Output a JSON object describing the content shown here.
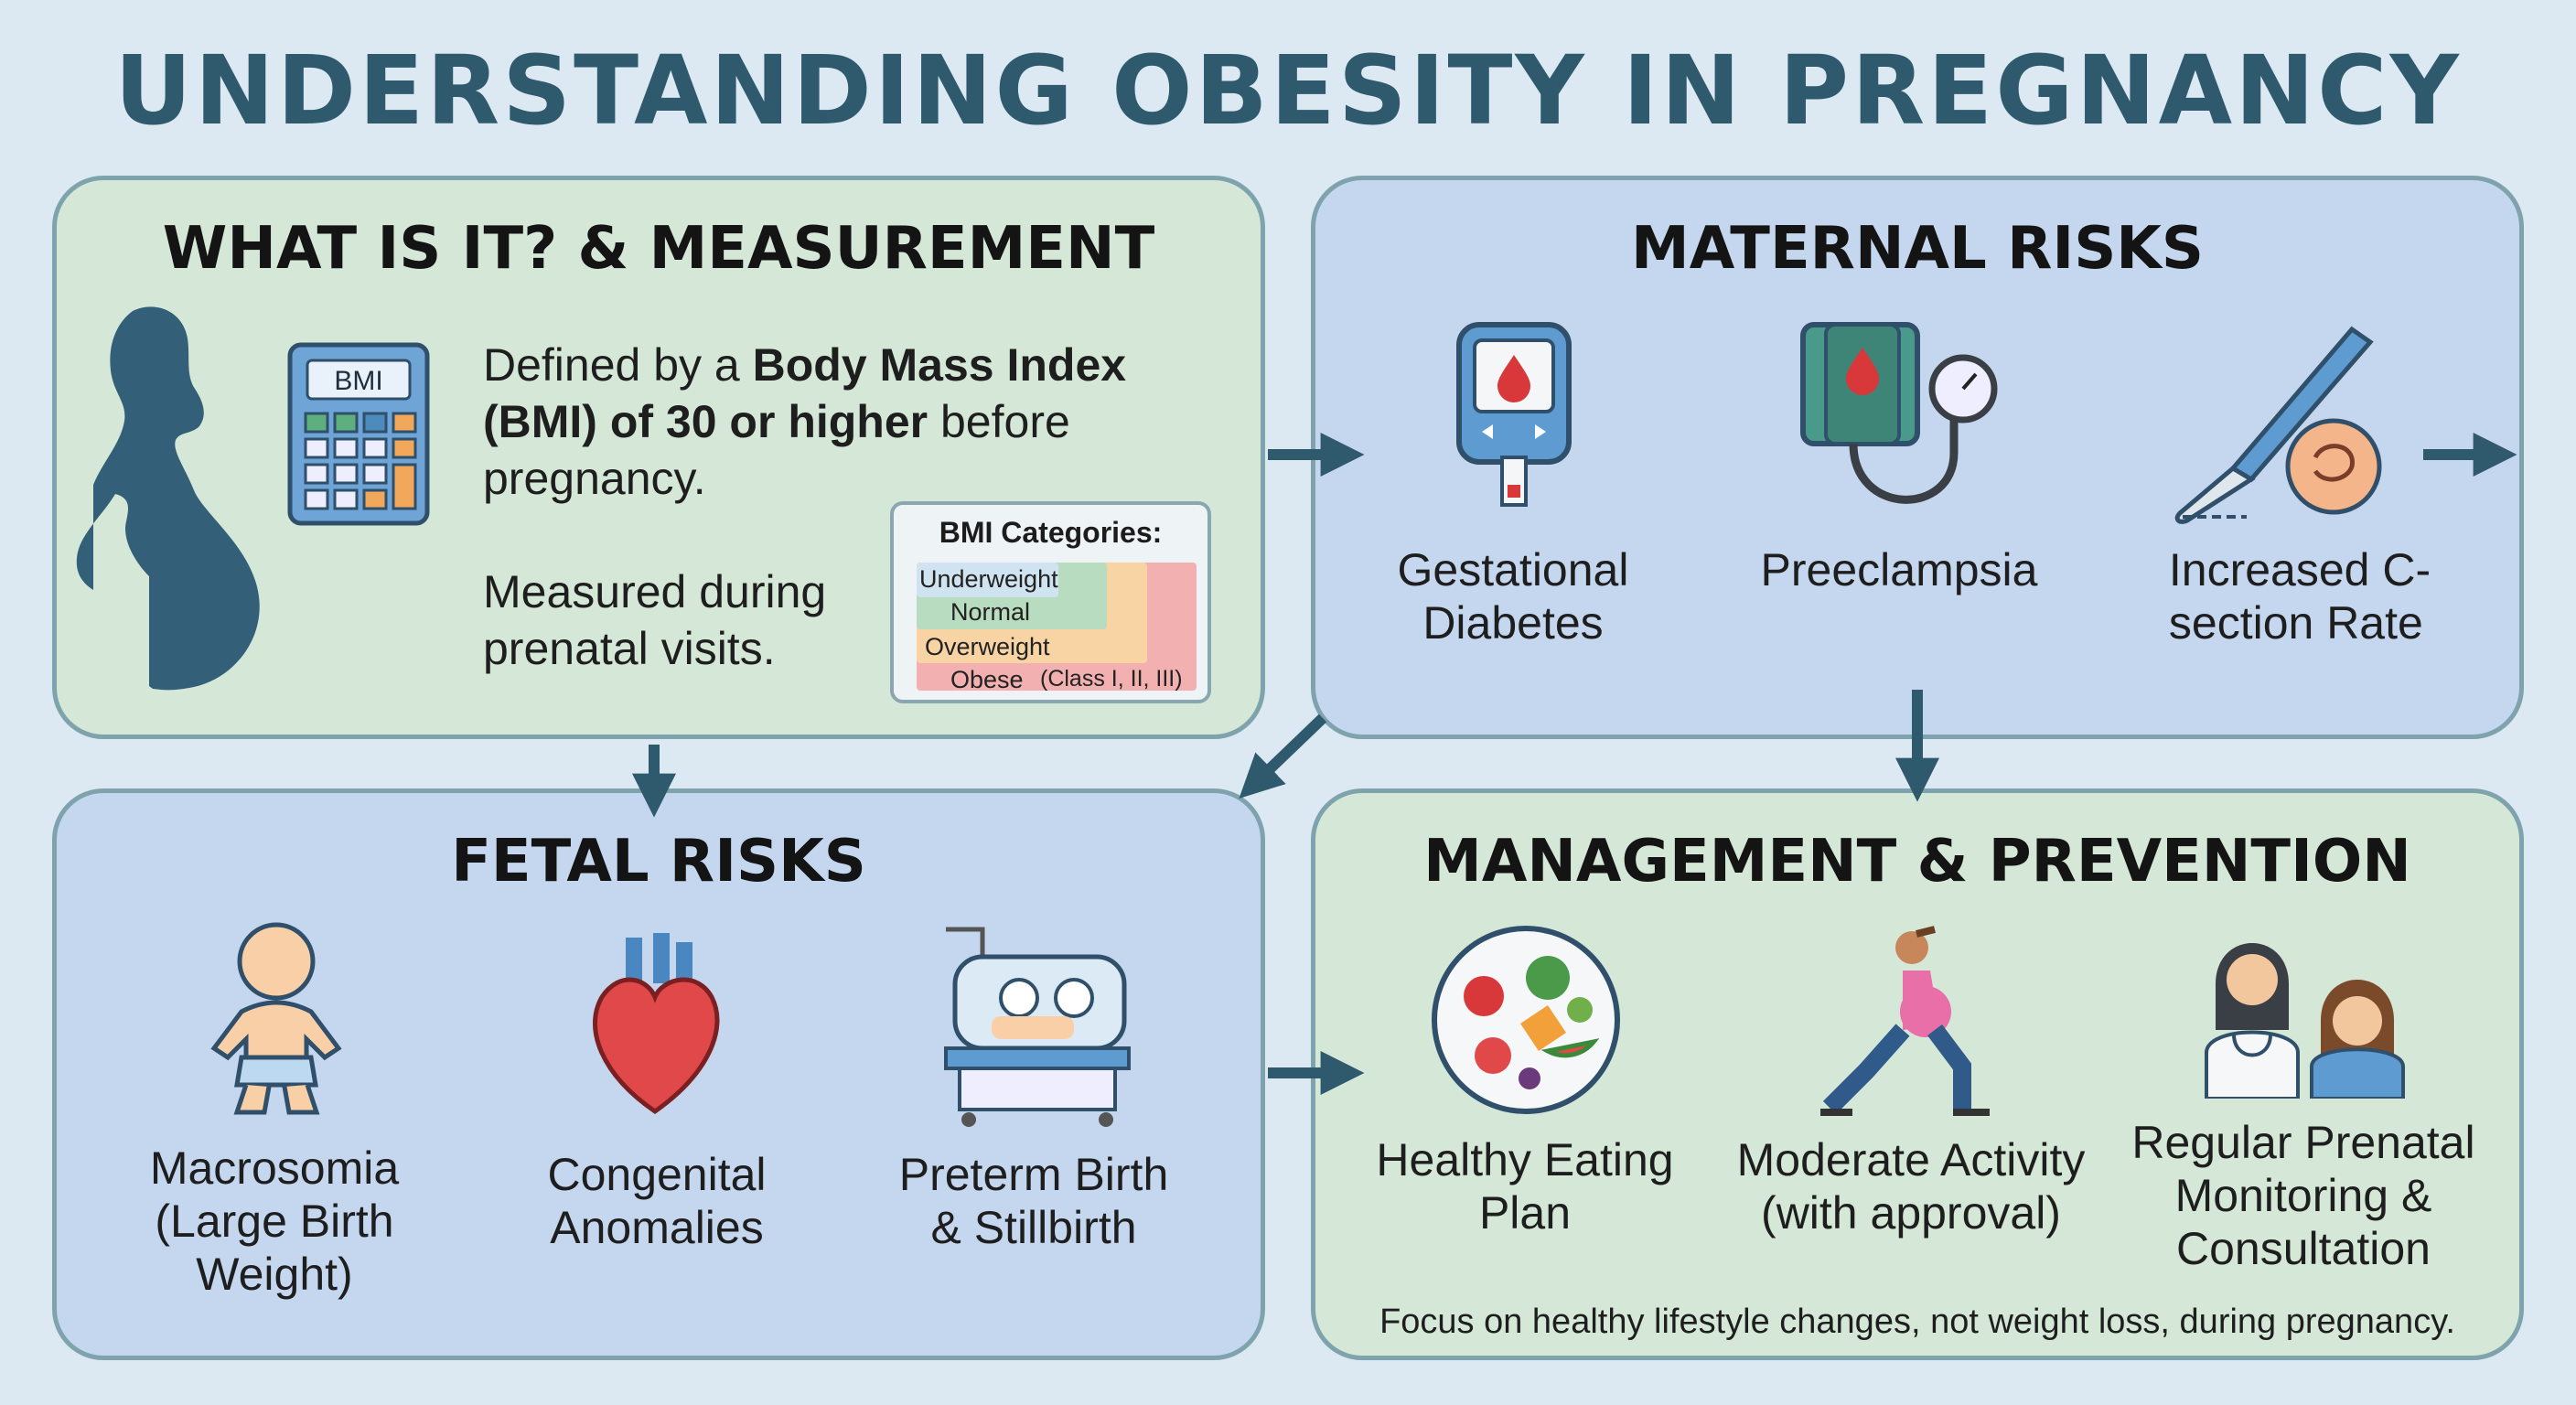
{
  "title": "UNDERSTANDING OBESITY IN PREGNANCY",
  "what_is_it": {
    "title": "WHAT IS IT? & MEASUREMENT",
    "calculator_label": "BMI",
    "definition_pre": "Defined by a ",
    "definition_bold": "Body Mass Index (BMI) of 30 or higher",
    "definition_post": " before pregnancy.",
    "measured": "Measured during prenatal visits.",
    "bmi_categories": {
      "heading": "BMI Categories:",
      "items": [
        "Underweight",
        "Normal",
        "Overweight",
        "Obese"
      ],
      "obese_note": "(Class I, II, III)",
      "colors": [
        "#cfe3f0",
        "#b8dcc0",
        "#f8d3a4",
        "#f2b0b0"
      ]
    }
  },
  "maternal_risks": {
    "title": "MATERNAL RISKS",
    "items": [
      {
        "label": "Gestational\nDiabetes",
        "icon": "glucometer-icon"
      },
      {
        "label": "Preeclampsia",
        "icon": "blood-pressure-icon"
      },
      {
        "label": "Increased C-\nsection Rate",
        "icon": "scalpel-icon"
      }
    ]
  },
  "fetal_risks": {
    "title": "FETAL RISKS",
    "items": [
      {
        "label": "Macrosomia\n(Large Birth\nWeight)",
        "icon": "baby-icon"
      },
      {
        "label": "Congenital\nAnomalies",
        "icon": "heart-icon"
      },
      {
        "label": "Preterm Birth\n& Stillbirth",
        "icon": "incubator-icon"
      }
    ]
  },
  "management": {
    "title": "MANAGEMENT & PREVENTION",
    "items": [
      {
        "label": "Healthy Eating\nPlan",
        "icon": "food-plate-icon"
      },
      {
        "label": "Moderate Activity\n(with approval)",
        "icon": "exercise-icon"
      },
      {
        "label": "Regular Prenatal\nMonitoring &\nConsultation",
        "icon": "doctor-consultation-icon"
      }
    ],
    "footer": "Focus on healthy lifestyle changes, not weight loss, during pregnancy."
  },
  "colors": {
    "accent": "#2f5a6e",
    "green_panel": "#d5e8d8",
    "blue_panel": "#c4d7ef",
    "background": "#dce9f3"
  }
}
